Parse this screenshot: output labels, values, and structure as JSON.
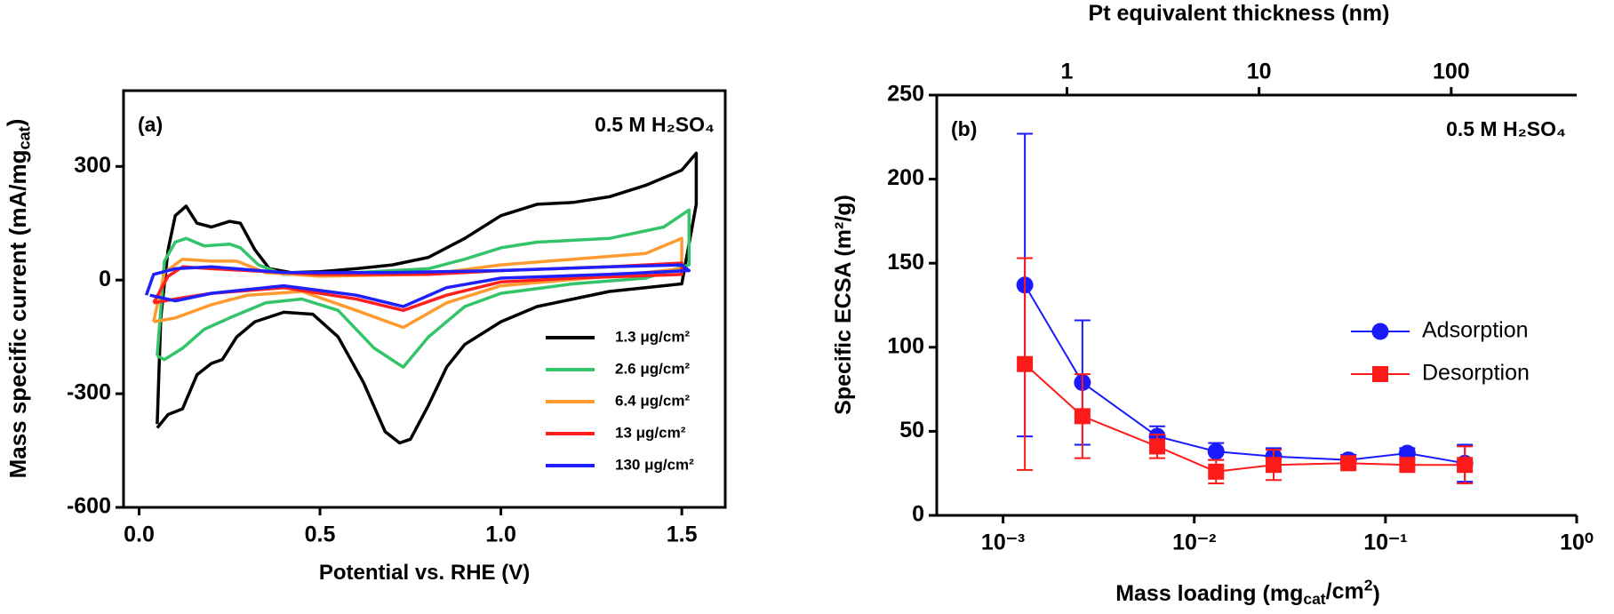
{
  "chart_data": [
    {
      "type": "line",
      "annotations": [
        "(a)",
        "0.5 M H₂SO₄"
      ],
      "xlabel": [
        {
          "text": "Potential vs. RHE (V)"
        }
      ],
      "ylabel": [
        {
          "text": "Mass specific current  (mA/mg"
        },
        {
          "text": "cat",
          "shift": "sub"
        },
        {
          "text": ")"
        }
      ],
      "xlim": [
        -0.043,
        1.62
      ],
      "ylim": [
        -600,
        500
      ],
      "xticks": [
        {
          "value": 0,
          "label": "0.0"
        },
        0.5,
        {
          "value": 1,
          "label": "1.0"
        },
        1.5
      ],
      "yticks": [
        -600,
        -300,
        0,
        300
      ],
      "legend": "lower right",
      "series": [
        {
          "name": "1.3 μg/cm²",
          "color": "#000000",
          "x": [
            0.05,
            0.06,
            0.08,
            0.1,
            0.13,
            0.16,
            0.2,
            0.25,
            0.28,
            0.32,
            0.36,
            0.42,
            0.5,
            0.6,
            0.7,
            0.8,
            0.9,
            1.0,
            1.1,
            1.2,
            1.3,
            1.4,
            1.5,
            1.54,
            1.54,
            1.5,
            1.4,
            1.3,
            1.2,
            1.1,
            1.0,
            0.9,
            0.85,
            0.8,
            0.75,
            0.72,
            0.68,
            0.62,
            0.55,
            0.48,
            0.4,
            0.32,
            0.27,
            0.23,
            0.2,
            0.16,
            0.12,
            0.08,
            0.05
          ],
          "values": [
            -380,
            -100,
            80,
            170,
            195,
            150,
            140,
            155,
            150,
            80,
            30,
            20,
            22,
            30,
            40,
            60,
            110,
            170,
            200,
            205,
            220,
            250,
            290,
            335,
            200,
            -10,
            -20,
            -30,
            -50,
            -70,
            -110,
            -170,
            -230,
            -330,
            -420,
            -430,
            -400,
            -270,
            -150,
            -90,
            -85,
            -110,
            -150,
            -210,
            -220,
            -250,
            -340,
            -355,
            -390
          ]
        },
        {
          "name": "2.6 μg/cm²",
          "color": "#33c46a",
          "x": [
            0.05,
            0.07,
            0.1,
            0.13,
            0.18,
            0.25,
            0.28,
            0.33,
            0.4,
            0.6,
            0.8,
            0.9,
            1.0,
            1.1,
            1.3,
            1.45,
            1.52,
            1.52,
            1.4,
            1.2,
            1.0,
            0.9,
            0.8,
            0.73,
            0.65,
            0.55,
            0.45,
            0.35,
            0.25,
            0.18,
            0.12,
            0.07,
            0.05
          ],
          "values": [
            -200,
            50,
            100,
            110,
            90,
            95,
            85,
            40,
            15,
            20,
            30,
            55,
            85,
            100,
            110,
            140,
            185,
            40,
            5,
            -10,
            -35,
            -70,
            -150,
            -230,
            -180,
            -80,
            -50,
            -60,
            -100,
            -130,
            -180,
            -210,
            -200
          ]
        },
        {
          "name": "6.4 μg/cm²",
          "color": "#ff9a2e",
          "x": [
            0.04,
            0.07,
            0.12,
            0.2,
            0.27,
            0.35,
            0.5,
            0.8,
            1.0,
            1.2,
            1.4,
            1.5,
            1.5,
            1.3,
            1.0,
            0.85,
            0.73,
            0.6,
            0.45,
            0.3,
            0.2,
            0.1,
            0.04
          ],
          "values": [
            -110,
            20,
            55,
            50,
            50,
            20,
            10,
            15,
            40,
            55,
            70,
            110,
            30,
            10,
            -15,
            -60,
            -125,
            -80,
            -30,
            -40,
            -65,
            -100,
            -110
          ]
        },
        {
          "name": "13 μg/cm²",
          "color": "#ff1f1f",
          "x": [
            0.04,
            0.08,
            0.12,
            0.2,
            0.3,
            0.5,
            0.8,
            1.0,
            1.3,
            1.5,
            1.5,
            1.2,
            1.0,
            0.85,
            0.73,
            0.6,
            0.4,
            0.2,
            0.1,
            0.04
          ],
          "values": [
            -60,
            10,
            35,
            30,
            25,
            15,
            15,
            25,
            35,
            45,
            15,
            5,
            -5,
            -40,
            -80,
            -50,
            -20,
            -35,
            -50,
            -60
          ]
        },
        {
          "name": "130 μg/cm²",
          "color": "#1f1fff",
          "x": [
            0.02,
            0.04,
            0.1,
            0.2,
            0.4,
            0.7,
            1.0,
            1.3,
            1.5,
            1.52,
            1.3,
            1.0,
            0.85,
            0.73,
            0.6,
            0.4,
            0.2,
            0.1,
            0.03
          ],
          "values": [
            -40,
            15,
            30,
            35,
            20,
            20,
            25,
            35,
            40,
            25,
            15,
            5,
            -20,
            -70,
            -40,
            -15,
            -35,
            -55,
            -40
          ]
        }
      ]
    },
    {
      "type": "scatter",
      "annotations": [
        "(b)",
        "0.5 M H₂SO₄"
      ],
      "xlabel": [
        {
          "text": "Mass loading (mg"
        },
        {
          "text": "cat",
          "shift": "sub"
        },
        {
          "text": "/cm"
        },
        {
          "text": "2",
          "shift": "super"
        },
        {
          "text": ")"
        }
      ],
      "ylabel": [
        {
          "text": "Specific ECSA (m²/g)"
        }
      ],
      "x2label": [
        {
          "text": "Pt equivalent thickness (nm)"
        }
      ],
      "xscale": "log",
      "x2scale": "log",
      "xlim": [
        0.00045,
        1
      ],
      "x2lim": [
        0.21,
        450
      ],
      "ylim": [
        0,
        250
      ],
      "xticks": [
        {
          "value": 0.001,
          "label": "10⁻³"
        },
        {
          "value": 0.01,
          "label": "10⁻²"
        },
        {
          "value": 0.1,
          "label": "10⁻¹"
        },
        {
          "value": 1,
          "label": "10⁰"
        }
      ],
      "x2ticks": [
        1,
        10,
        100
      ],
      "yticks": [
        0,
        50,
        100,
        150,
        200,
        250
      ],
      "legend": "right",
      "x": [
        0.0013,
        0.0026,
        0.0064,
        0.013,
        0.026,
        0.064,
        0.13,
        0.26
      ],
      "series": [
        {
          "name": "Adsorption",
          "color": "#1a1aff",
          "marker": "circle",
          "values": [
            137,
            79,
            47,
            38,
            35,
            33,
            37,
            31
          ],
          "errors": [
            90,
            37,
            6,
            5,
            5,
            3,
            3,
            11
          ]
        },
        {
          "name": "Desorption",
          "color": "#ff1a1a",
          "marker": "square",
          "values": [
            90,
            59,
            41,
            26,
            30,
            31,
            30,
            30
          ],
          "errors": [
            63,
            25,
            7,
            7,
            9,
            3,
            3,
            11
          ]
        }
      ]
    }
  ]
}
